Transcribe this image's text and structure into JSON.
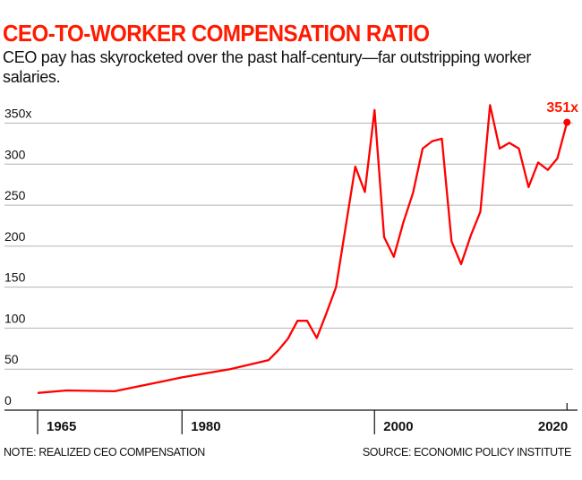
{
  "chart_data": {
    "type": "line",
    "title": "CEO-TO-WORKER COMPENSATION RATIO",
    "subtitle": "CEO pay has skyrocketed over the past half-century—far outstripping worker salaries.",
    "note": "NOTE: REALIZED CEO COMPENSATION",
    "source": "SOURCE: ECONOMIC POLICY INSTITUTE",
    "xlabel": "",
    "ylabel": "",
    "xlim": [
      1965,
      2020
    ],
    "ylim": [
      0,
      350
    ],
    "grid": true,
    "line_color": "#ff0000",
    "title_color": "#ff1a00",
    "y_ticks": [
      {
        "value": 0,
        "label": "0"
      },
      {
        "value": 50,
        "label": "50"
      },
      {
        "value": 100,
        "label": "100"
      },
      {
        "value": 150,
        "label": "150"
      },
      {
        "value": 200,
        "label": "200"
      },
      {
        "value": 250,
        "label": "250"
      },
      {
        "value": 300,
        "label": "300"
      },
      {
        "value": 350,
        "label": "350x"
      }
    ],
    "x_ticks": [
      {
        "value": 1965,
        "label": "1965"
      },
      {
        "value": 1980,
        "label": "1980"
      },
      {
        "value": 2000,
        "label": "2000"
      },
      {
        "value": 2020,
        "label": "2020"
      }
    ],
    "end_label": "351x",
    "series": [
      {
        "x": [
          1965,
          1968,
          1973,
          1978,
          1980,
          1985,
          1989,
          1990,
          1991,
          1992,
          1993,
          1994,
          1995,
          1996,
          1998,
          1999,
          2000,
          2001,
          2002,
          2003,
          2004,
          2005,
          2006,
          2007,
          2008,
          2009,
          2010,
          2011,
          2012,
          2013,
          2014,
          2015,
          2016,
          2017,
          2018,
          2019,
          2020
        ],
        "y": [
          21,
          24,
          23,
          35,
          40,
          50,
          61,
          73,
          87,
          109,
          109,
          88,
          118,
          150,
          297,
          266,
          366,
          211,
          187,
          229,
          265,
          319,
          328,
          331,
          206,
          178,
          213,
          242,
          372,
          319,
          326,
          319,
          272,
          302,
          293,
          307,
          351
        ]
      }
    ]
  }
}
